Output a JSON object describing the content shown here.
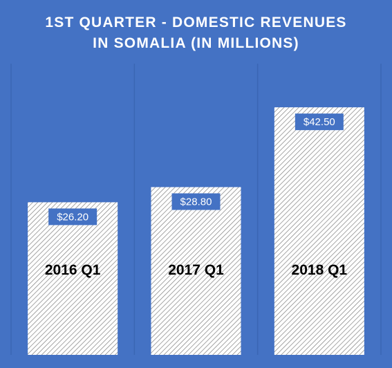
{
  "chart_data": {
    "type": "bar",
    "title_lines": [
      "1ST QUARTER  - DOMESTIC REVENUES",
      "IN SOMALIA  (IN MILLIONS)"
    ],
    "categories": [
      "2016 Q1",
      "2017 Q1",
      "2018 Q1"
    ],
    "values": [
      26.2,
      28.8,
      42.5
    ],
    "data_labels": [
      "$26.20",
      "$28.80",
      "$42.50"
    ],
    "xlabel": "",
    "ylabel": "",
    "ylim": [
      0,
      50
    ],
    "grid": "vertical-lines",
    "legend": "none",
    "colors": {
      "background": "#4472c4",
      "bar_fill": "#ffffff",
      "bar_hatch": "#7f7f7f",
      "label_box": "#4472c4",
      "title_text": "#ffffff",
      "category_text": "#000000",
      "gridline": "#3a66b4"
    }
  }
}
